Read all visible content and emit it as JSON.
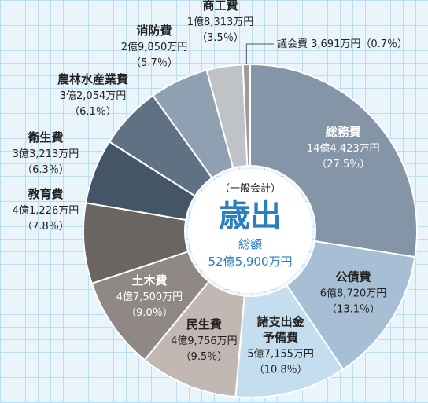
{
  "chart_data": {
    "type": "pie",
    "donut": true,
    "center": {
      "sub_label": "（一般会計）",
      "title": "歳出",
      "total_label": "総額",
      "total_value": "52億5,900万円"
    },
    "slices": [
      {
        "category": "総務費",
        "label_lines": [
          "総務費"
        ],
        "amount": "14億4,423万円",
        "percent": 27.5,
        "percent_label": "（27.5％）",
        "color": "#8495a7",
        "text_color": "#ffffff"
      },
      {
        "category": "公債費",
        "label_lines": [
          "公債費"
        ],
        "amount": "6億8,720万円",
        "percent": 13.1,
        "percent_label": "（13.1％）",
        "color": "#a7bfd4",
        "text_color": "#222222"
      },
      {
        "category": "諸支出金予備費",
        "label_lines": [
          "諸支出金",
          "予備費"
        ],
        "amount": "5億7,155万円",
        "percent": 10.8,
        "percent_label": "（10.8％）",
        "color": "#c4ddef",
        "text_color": "#222222"
      },
      {
        "category": "民生費",
        "label_lines": [
          "民生費"
        ],
        "amount": "4億9,756万円",
        "percent": 9.5,
        "percent_label": "（9.5％）",
        "color": "#c2b7b2",
        "text_color": "#222222"
      },
      {
        "category": "土木費",
        "label_lines": [
          "土木費"
        ],
        "amount": "4億7,500万円",
        "percent": 9.0,
        "percent_label": "（9.0％）",
        "color": "#8f8885",
        "text_color": "#ffffff"
      },
      {
        "category": "教育費",
        "label_lines": [
          "教育費"
        ],
        "amount": "4億1,226万円",
        "percent": 7.8,
        "percent_label": "（7.8％）",
        "color": "#6b6562",
        "text_color": "#222222"
      },
      {
        "category": "衛生費",
        "label_lines": [
          "衛生費"
        ],
        "amount": "3億3,213万円",
        "percent": 6.3,
        "percent_label": "（6.3％）",
        "color": "#445565",
        "text_color": "#222222"
      },
      {
        "category": "農林水産業費",
        "label_lines": [
          "農林水産業費"
        ],
        "amount": "3億2,054万円",
        "percent": 6.1,
        "percent_label": "（6.1％）",
        "color": "#5f7284",
        "text_color": "#222222"
      },
      {
        "category": "消防費",
        "label_lines": [
          "消防費"
        ],
        "amount": "2億9,850万円",
        "percent": 5.7,
        "percent_label": "（5.7％）",
        "color": "#8ea0b2",
        "text_color": "#222222"
      },
      {
        "category": "商工費",
        "label_lines": [
          "商工費"
        ],
        "amount": "1億8,313万円",
        "percent": 3.5,
        "percent_label": "（3.5％）",
        "color": "#c0c3c6",
        "text_color": "#222222"
      },
      {
        "category": "議会費",
        "label_lines": [
          "議会費"
        ],
        "amount": "3,691万円",
        "percent": 0.7,
        "percent_label": "（0.7％）",
        "color": "#9a9b9c",
        "text_color": "#222222"
      }
    ]
  }
}
